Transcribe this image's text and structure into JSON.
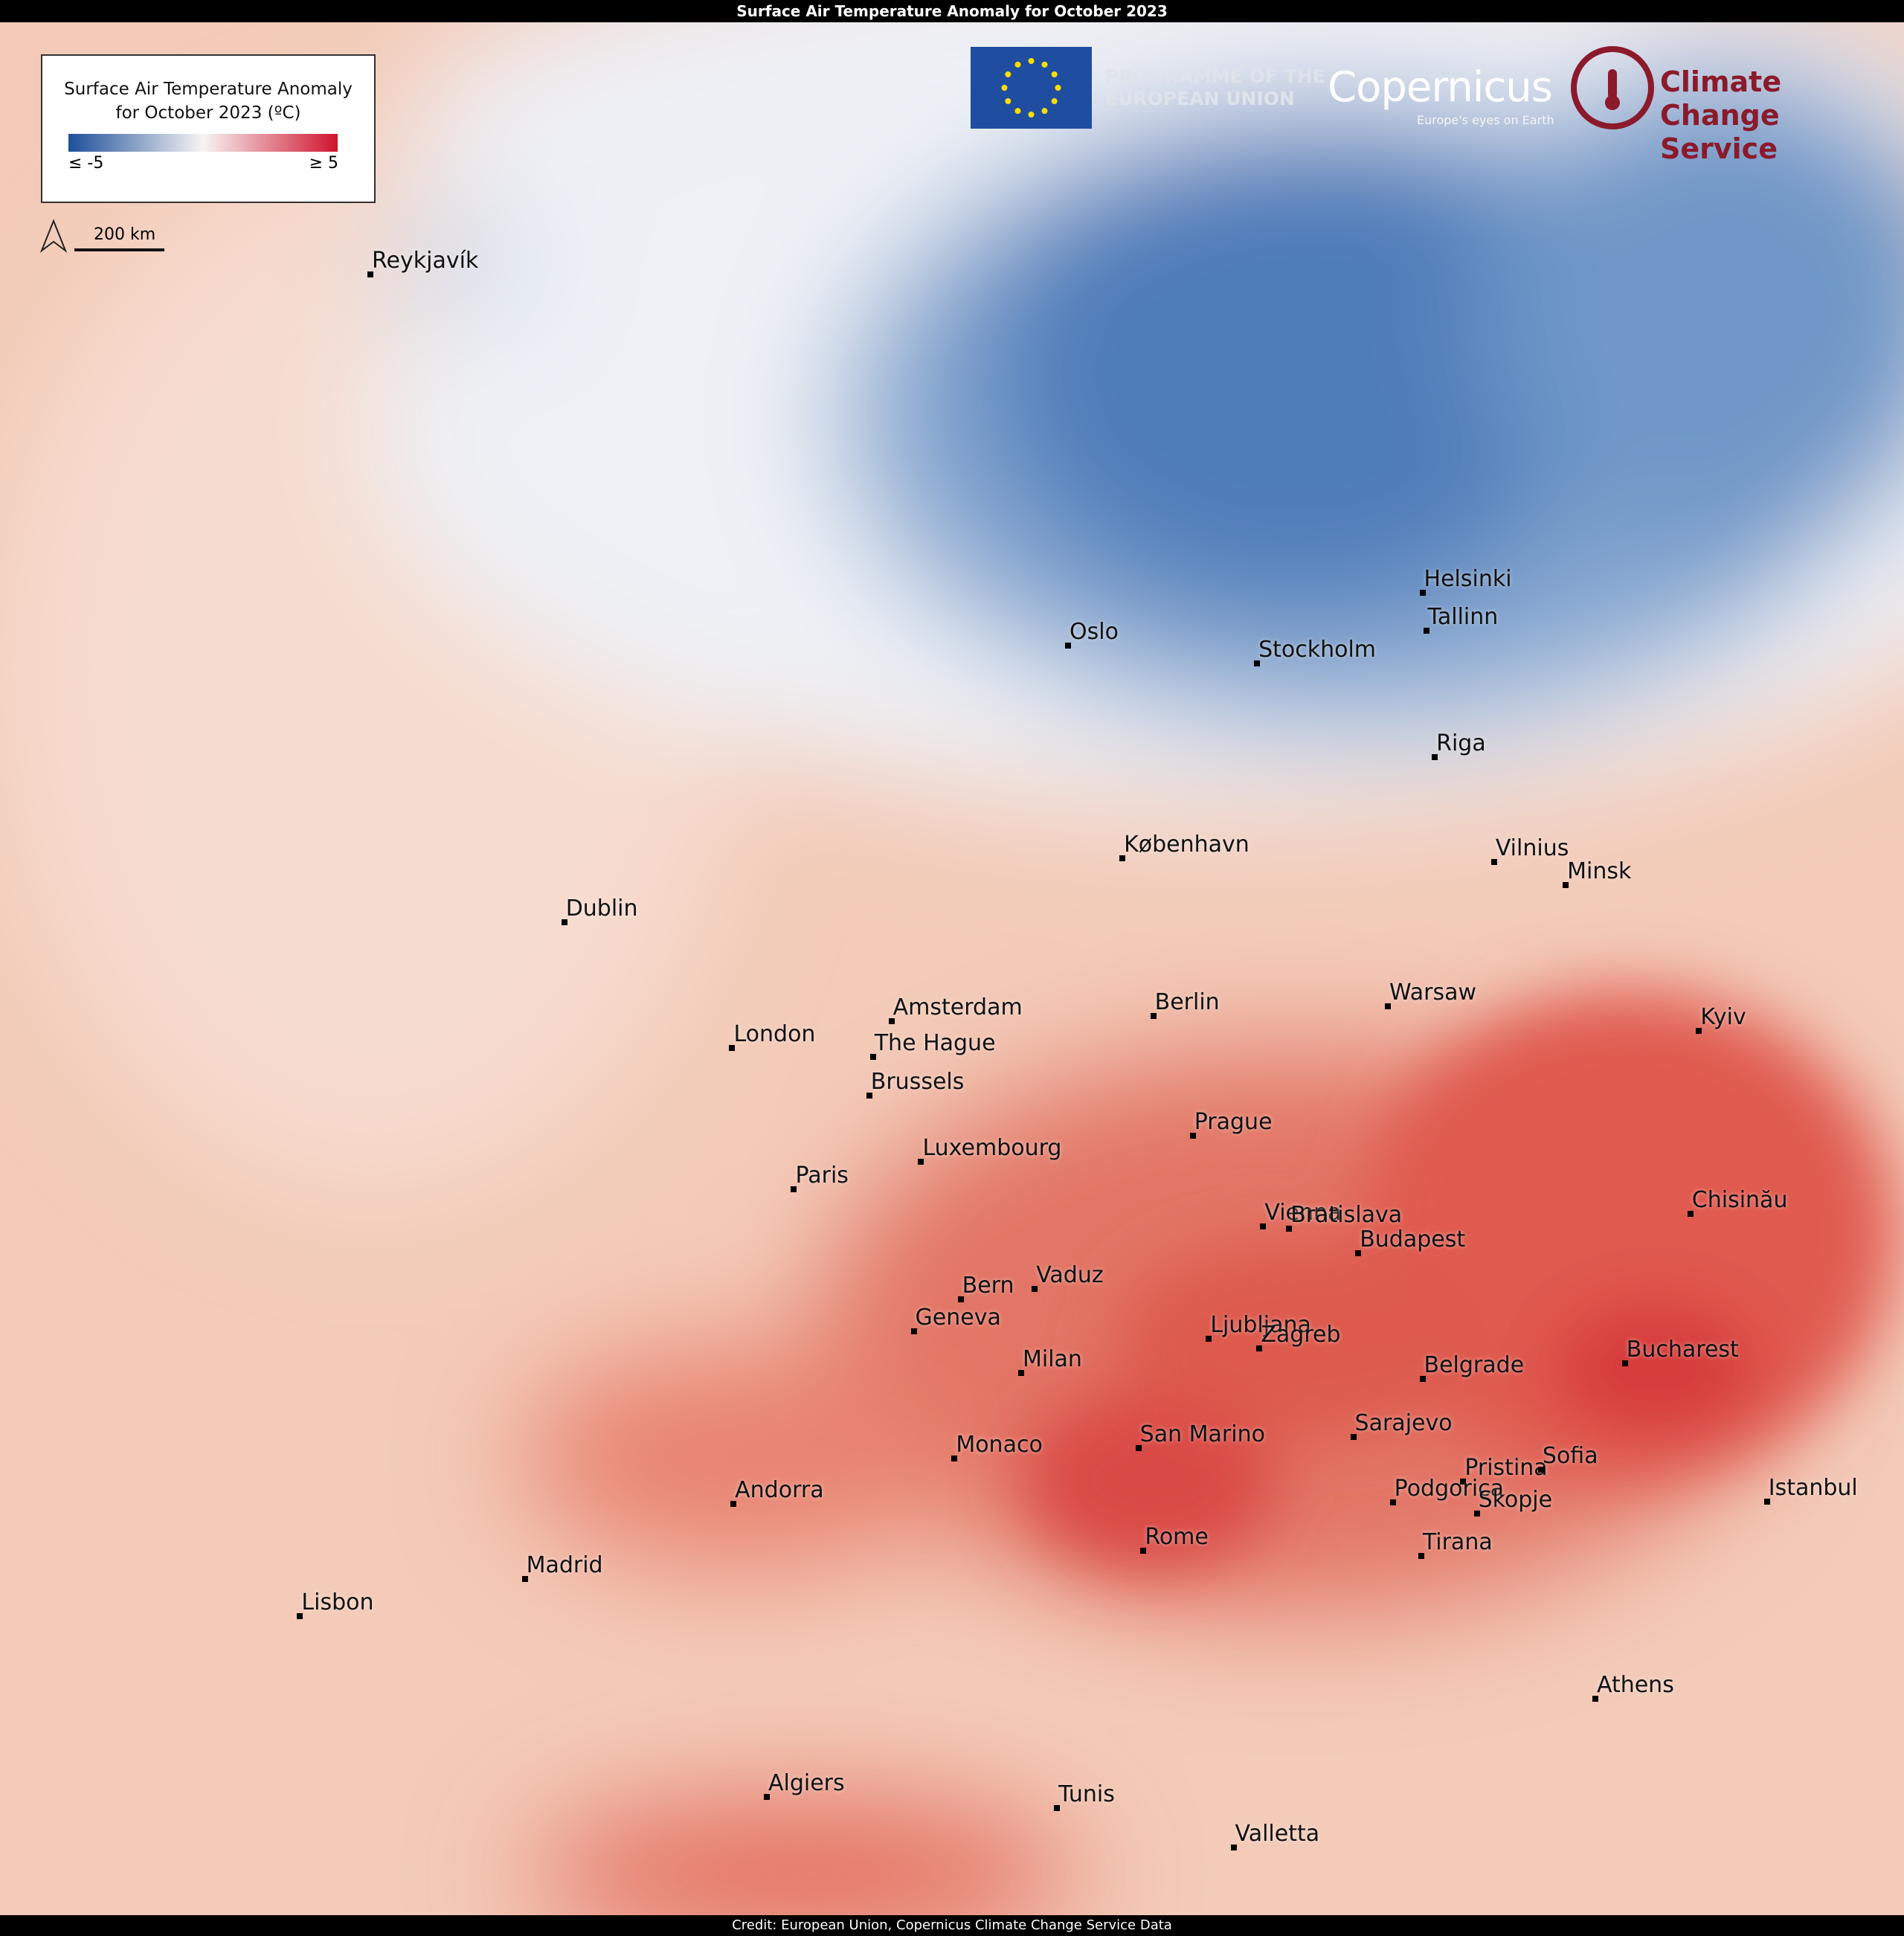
{
  "header": {
    "title": "Surface Air Temperature Anomaly for October 2023"
  },
  "legend": {
    "title_line1": "Surface Air Temperature Anomaly",
    "title_line2": "for October 2023 (ºC)",
    "min_label": "≤ -5",
    "max_label": "≥ 5"
  },
  "scale_bar": {
    "label": "200 km"
  },
  "logos": {
    "eu_line1": "PROGRAMME OF THE",
    "eu_line2": "EUROPEAN UNION",
    "copernicus": "Copernicus",
    "copernicus_tagline": "Europe's eyes on Earth",
    "c3s_line1": "Climate",
    "c3s_line2": "Change Service"
  },
  "cities": [
    "Reykjavík",
    "Oslo",
    "Stockholm",
    "Helsinki",
    "Tallinn",
    "Riga",
    "København",
    "Vilnius",
    "Minsk",
    "Dublin",
    "London",
    "Amsterdam",
    "The Hague",
    "Berlin",
    "Warsaw",
    "Kyiv",
    "Brussels",
    "Luxembourg",
    "Paris",
    "Prague",
    "Vienna",
    "Bratislava",
    "Budapest",
    "Chisinău",
    "Bern",
    "Vaduz",
    "Geneva",
    "Ljubljana",
    "Zagreb",
    "Milan",
    "Belgrade",
    "Bucharest",
    "San Marino",
    "Sarajevo",
    "Monaco",
    "Pristina",
    "Sofia",
    "Andorra",
    "Podgorica",
    "Skopje",
    "Istanbul",
    "Tirana",
    "Rome",
    "Madrid",
    "Lisbon",
    "Athens",
    "Algiers",
    "Tunis",
    "Valletta"
  ],
  "footer": {
    "credit": "Credit: European Union, Copernicus Climate Change Service Data"
  }
}
